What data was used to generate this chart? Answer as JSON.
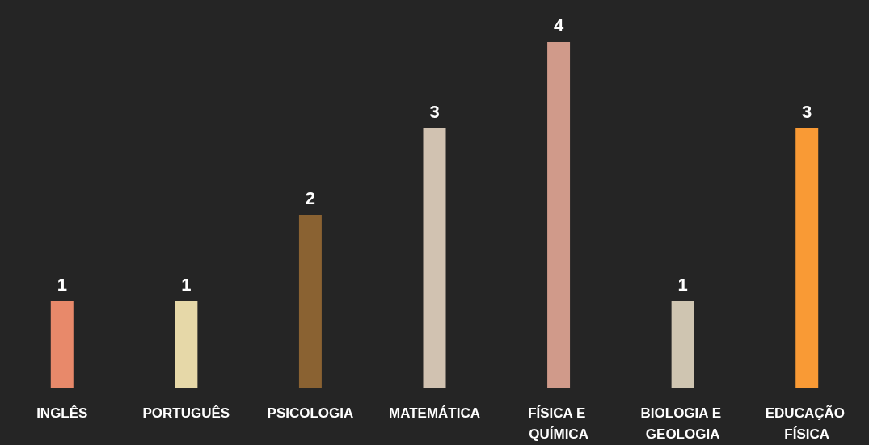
{
  "chart_data": {
    "type": "bar",
    "categories": [
      "INGLÊS",
      "PORTUGUÊS",
      "PSICOLOGIA",
      "MATEMÁTICA",
      "FÍSICA E QUÍMICA",
      "BIOLOGIA E GEOLOGIA",
      "EDUCAÇÃO FÍSICA"
    ],
    "values": [
      1,
      1,
      2,
      3,
      4,
      1,
      3
    ],
    "colors": [
      "#e8896a",
      "#e6d8a8",
      "#8a6232",
      "#d1c2b1",
      "#d09a8a",
      "#cfc5b1",
      "#f99a35"
    ],
    "ylim": [
      0,
      4
    ],
    "data_labels": true,
    "tick_labels": "x"
  }
}
